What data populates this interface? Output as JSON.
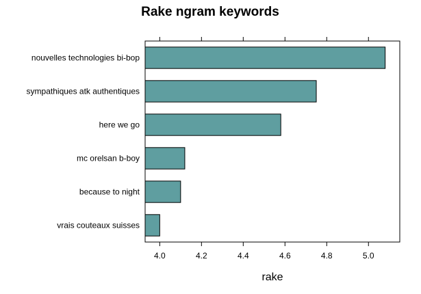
{
  "chart_data": {
    "type": "bar",
    "orientation": "horizontal",
    "title": "Rake ngram keywords",
    "xlabel": "rake",
    "ylabel": "",
    "categories": [
      "nouvelles technologies bi-bop",
      "sympathiques atk authentiques",
      "here we go",
      "mc orelsan b-boy",
      "because to night",
      "vrais couteaux suisses"
    ],
    "values": [
      5.08,
      4.75,
      4.58,
      4.12,
      4.1,
      4.0
    ],
    "xlim": [
      3.93,
      5.15
    ],
    "x_ticks": [
      4.0,
      4.2,
      4.4,
      4.6,
      4.8,
      5.0
    ],
    "x_tick_labels": [
      "4.0",
      "4.2",
      "4.4",
      "4.6",
      "4.8",
      "5.0"
    ],
    "bar_color": "#5f9ea0",
    "bar_edge_color": "#000000",
    "grid": false,
    "legend": "none"
  }
}
